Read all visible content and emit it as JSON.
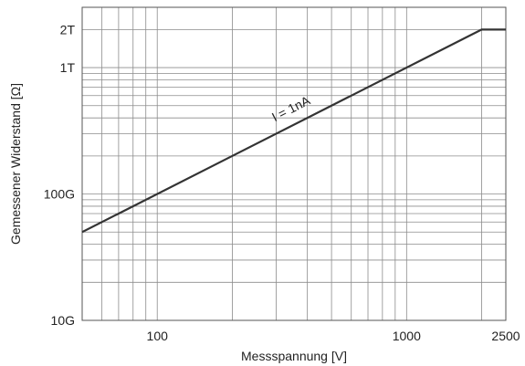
{
  "chart_data": {
    "type": "line",
    "title": "",
    "xlabel": "Messspannung [V]",
    "ylabel": "Gemessener Widerstand [Ω]",
    "xscale": "log",
    "yscale": "log",
    "xlim": [
      50,
      2500
    ],
    "ylim": [
      10000000000,
      3000000000000
    ],
    "x_ticks": [
      {
        "value": 100,
        "label": "100"
      },
      {
        "value": 1000,
        "label": "1000"
      },
      {
        "value": 2500,
        "label": "2500"
      }
    ],
    "y_ticks": [
      {
        "value": 10000000000,
        "label": "10G"
      },
      {
        "value": 100000000000,
        "label": "100G"
      },
      {
        "value": 1000000000000,
        "label": "1T"
      },
      {
        "value": 2000000000000,
        "label": "2T"
      }
    ],
    "grid": true,
    "series": [
      {
        "name": "",
        "x": [
          50,
          2000,
          2500
        ],
        "y": [
          50000000000,
          2000000000000,
          2000000000000
        ],
        "color": "#333333"
      }
    ],
    "annotations": [
      {
        "text": "I = 1nA",
        "x": 350,
        "y": 440000000000
      }
    ]
  }
}
